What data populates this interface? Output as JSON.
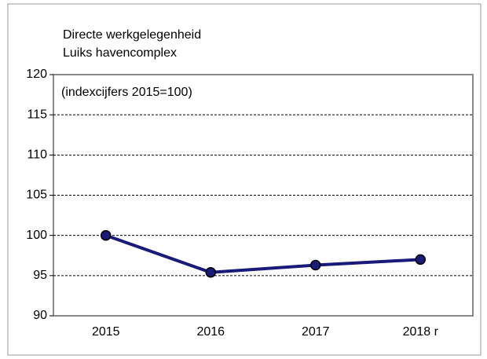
{
  "chart_data": {
    "type": "line",
    "title": "Directe werkgelegenheid",
    "subtitle": "Luiks havencomplex",
    "annotation": "(indexcijfers 2015=100)",
    "categories": [
      "2015",
      "2016",
      "2017",
      "2018 r"
    ],
    "series": [
      {
        "name": "Directe werkgelegenheid",
        "color": "#1a1a7a",
        "values": [
          100,
          95.4,
          96.3,
          97.0
        ]
      }
    ],
    "ylim": [
      90,
      120
    ],
    "yticks": [
      90,
      95,
      100,
      105,
      110,
      115,
      120
    ],
    "grid": true
  }
}
